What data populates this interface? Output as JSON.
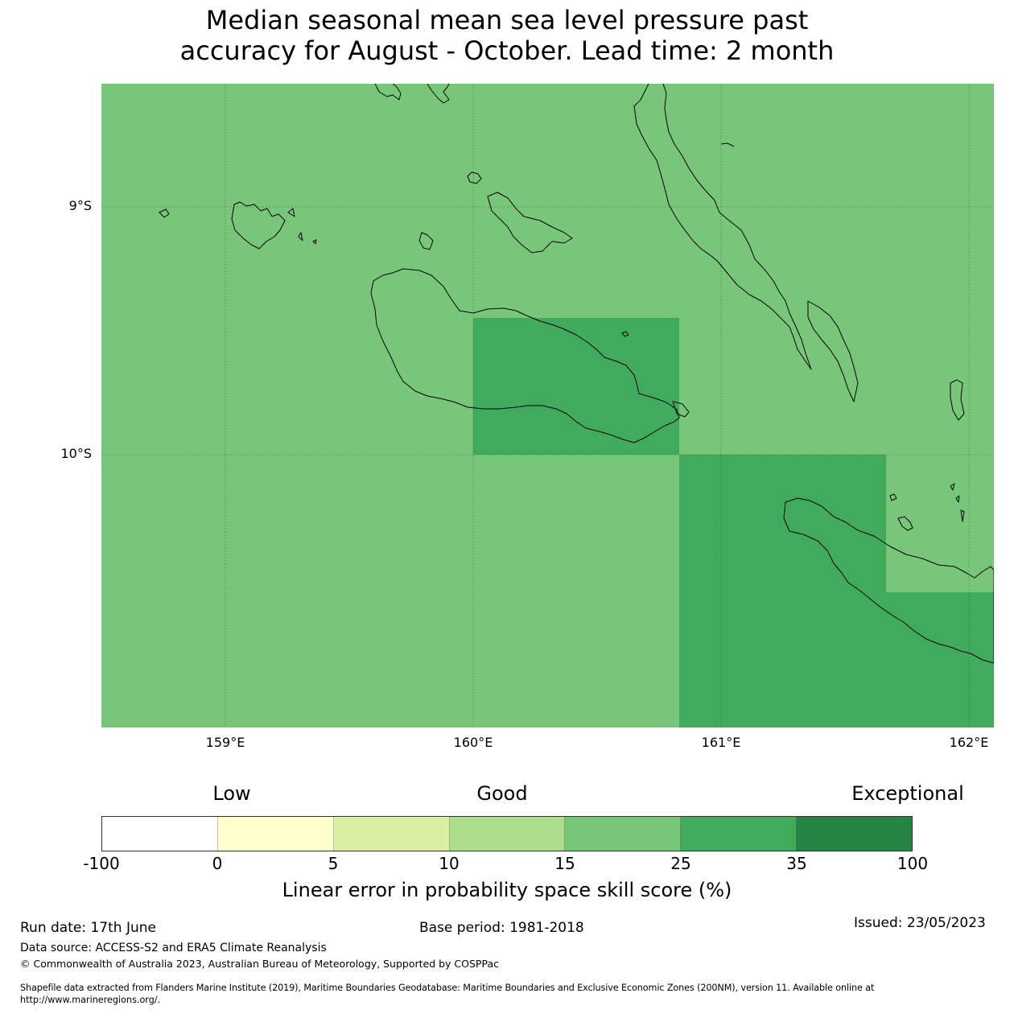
{
  "title_line1": "Median seasonal mean sea level pressure past",
  "title_line2": "accuracy for August - October. Lead time: 2 month",
  "map": {
    "lat_labels": [
      "9°S",
      "10°S"
    ],
    "lon_labels": [
      "159°E",
      "160°E",
      "161°E",
      "162°E"
    ],
    "colors": {
      "good_15_25": "#78c679",
      "good_25_35": "#41ab5d"
    }
  },
  "legend": {
    "categories": {
      "low": "Low",
      "good": "Good",
      "exceptional": "Exceptional"
    },
    "ticks": [
      "-100",
      "0",
      "5",
      "10",
      "15",
      "25",
      "35",
      "100"
    ],
    "colors": [
      "#ffffff",
      "#ffffcc",
      "#d9f0a3",
      "#addd8e",
      "#78c679",
      "#41ab5d",
      "#238443"
    ],
    "label": "Linear error in probability space skill score (%)"
  },
  "footer": {
    "run_date": "Run date: 17th June",
    "base_period": "Base period: 1981-2018",
    "issued": "Issued: 23/05/2023",
    "data_source": "Data source: ACCESS-S2 and ERA5 Climate Reanalysis",
    "copyright": "© Commonwealth of Australia 2023, Australian Bureau of Meteorology, Supported by COSPPac",
    "shapefile_line1": "Shapefile data extracted from Flanders Marine Institute (2019), Maritime Boundaries Geodatabase: Maritime Boundaries and Exclusive Economic Zones (200NM), version 11. Available online at",
    "shapefile_line2": "http://www.marineregions.org/."
  }
}
